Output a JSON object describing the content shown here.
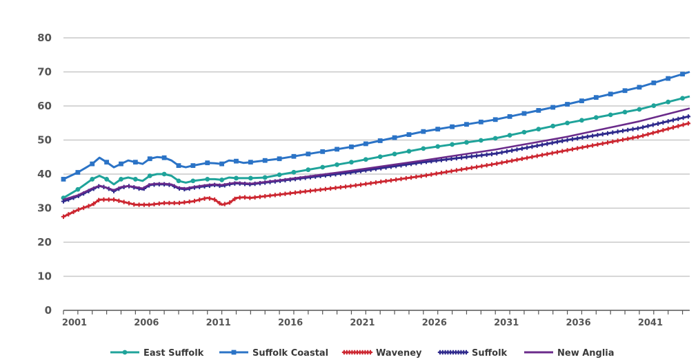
{
  "chart_data": {
    "type": "line",
    "title": "",
    "xlabel": "",
    "ylabel": "",
    "ylim": [
      0,
      80
    ],
    "yticks": [
      0,
      10,
      20,
      30,
      40,
      50,
      60,
      70,
      80
    ],
    "xlim": [
      2001,
      2044.5
    ],
    "xticks": [
      2001,
      2006,
      2011,
      2016,
      2021,
      2026,
      2031,
      2036,
      2041
    ],
    "grid": "horizontal",
    "legend_position": "bottom",
    "series": [
      {
        "name": "East Suffolk",
        "color": "#1fa39a",
        "marker": "circle",
        "points": [
          [
            2001,
            33.0
          ],
          [
            2002,
            35.5
          ],
          [
            2003,
            38.5
          ],
          [
            2003.5,
            39.5
          ],
          [
            2004,
            38.5
          ],
          [
            2004.5,
            37.0
          ],
          [
            2005,
            38.5
          ],
          [
            2005.5,
            39.0
          ],
          [
            2006,
            38.5
          ],
          [
            2006.5,
            38.0
          ],
          [
            2007,
            39.5
          ],
          [
            2007.5,
            40.0
          ],
          [
            2008,
            40.0
          ],
          [
            2008.5,
            39.5
          ],
          [
            2009,
            38.0
          ],
          [
            2009.5,
            37.5
          ],
          [
            2010,
            38.0
          ],
          [
            2011,
            38.5
          ],
          [
            2011.5,
            38.5
          ],
          [
            2012,
            38.3
          ],
          [
            2012.5,
            39.0
          ],
          [
            2013,
            38.8
          ],
          [
            2014,
            38.8
          ],
          [
            2015,
            39.0
          ],
          [
            2016,
            39.8
          ],
          [
            2021,
            43.5
          ],
          [
            2026,
            47.5
          ],
          [
            2031,
            50.5
          ],
          [
            2036,
            55.0
          ],
          [
            2041,
            59.0
          ],
          [
            2044.5,
            62.8
          ]
        ]
      },
      {
        "name": "Suffolk Coastal",
        "color": "#2b73c6",
        "marker": "square",
        "points": [
          [
            2001,
            38.5
          ],
          [
            2002,
            40.5
          ],
          [
            2003,
            43.0
          ],
          [
            2003.5,
            44.8
          ],
          [
            2004,
            43.5
          ],
          [
            2004.5,
            42.0
          ],
          [
            2005,
            43.0
          ],
          [
            2005.5,
            44.0
          ],
          [
            2006,
            43.5
          ],
          [
            2006.5,
            43.0
          ],
          [
            2007,
            44.5
          ],
          [
            2007.5,
            45.0
          ],
          [
            2008,
            44.8
          ],
          [
            2008.5,
            44.0
          ],
          [
            2009,
            42.5
          ],
          [
            2009.5,
            42.0
          ],
          [
            2010,
            42.5
          ],
          [
            2011,
            43.3
          ],
          [
            2011.5,
            43.2
          ],
          [
            2012,
            43.0
          ],
          [
            2012.5,
            44.0
          ],
          [
            2013,
            43.8
          ],
          [
            2013.5,
            43.3
          ],
          [
            2014,
            43.5
          ],
          [
            2016,
            44.5
          ],
          [
            2021,
            48.0
          ],
          [
            2026,
            52.5
          ],
          [
            2031,
            56.0
          ],
          [
            2036,
            60.5
          ],
          [
            2041,
            65.5
          ],
          [
            2044.5,
            70.0
          ]
        ]
      },
      {
        "name": "Waveney",
        "color": "#cc2630",
        "marker": "plus",
        "points": [
          [
            2001,
            27.5
          ],
          [
            2002,
            29.5
          ],
          [
            2003,
            31.0
          ],
          [
            2003.5,
            32.5
          ],
          [
            2004,
            32.5
          ],
          [
            2004.5,
            32.5
          ],
          [
            2005,
            32.0
          ],
          [
            2005.5,
            31.5
          ],
          [
            2006,
            31.0
          ],
          [
            2007,
            31.0
          ],
          [
            2008,
            31.5
          ],
          [
            2009,
            31.5
          ],
          [
            2010,
            32.0
          ],
          [
            2010.5,
            32.5
          ],
          [
            2011,
            33.0
          ],
          [
            2011.5,
            32.5
          ],
          [
            2012,
            31.0
          ],
          [
            2012.5,
            31.5
          ],
          [
            2013,
            33.0
          ],
          [
            2013.5,
            33.2
          ],
          [
            2014,
            33.0
          ],
          [
            2016,
            34.0
          ],
          [
            2021,
            36.5
          ],
          [
            2026,
            39.5
          ],
          [
            2031,
            43.0
          ],
          [
            2036,
            47.0
          ],
          [
            2041,
            51.0
          ],
          [
            2044.5,
            55.0
          ]
        ]
      },
      {
        "name": "Suffolk",
        "color": "#2f2a8c",
        "marker": "plus",
        "points": [
          [
            2001,
            32.0
          ],
          [
            2002,
            33.5
          ],
          [
            2003,
            35.5
          ],
          [
            2003.5,
            36.5
          ],
          [
            2004,
            36.0
          ],
          [
            2004.5,
            35.0
          ],
          [
            2005,
            36.0
          ],
          [
            2005.5,
            36.5
          ],
          [
            2006,
            36.0
          ],
          [
            2006.5,
            35.5
          ],
          [
            2007,
            36.8
          ],
          [
            2007.5,
            37.0
          ],
          [
            2008,
            37.0
          ],
          [
            2008.5,
            36.8
          ],
          [
            2009,
            35.8
          ],
          [
            2009.5,
            35.5
          ],
          [
            2010,
            36.0
          ],
          [
            2011,
            36.5
          ],
          [
            2011.5,
            36.8
          ],
          [
            2012,
            36.5
          ],
          [
            2012.5,
            37.0
          ],
          [
            2013,
            37.3
          ],
          [
            2014,
            37.0
          ],
          [
            2016,
            38.0
          ],
          [
            2021,
            40.5
          ],
          [
            2026,
            43.5
          ],
          [
            2031,
            46.0
          ],
          [
            2036,
            50.0
          ],
          [
            2041,
            53.5
          ],
          [
            2044.5,
            57.0
          ]
        ]
      },
      {
        "name": "New Anglia",
        "color": "#6a2a8a",
        "marker": "none",
        "points": [
          [
            2001,
            32.5
          ],
          [
            2002,
            33.8
          ],
          [
            2003,
            35.8
          ],
          [
            2003.5,
            36.6
          ],
          [
            2004,
            36.0
          ],
          [
            2004.5,
            35.3
          ],
          [
            2005,
            36.2
          ],
          [
            2005.5,
            36.5
          ],
          [
            2006,
            36.2
          ],
          [
            2006.5,
            35.8
          ],
          [
            2007,
            37.0
          ],
          [
            2007.5,
            37.2
          ],
          [
            2008,
            37.2
          ],
          [
            2008.5,
            37.0
          ],
          [
            2009,
            36.0
          ],
          [
            2009.5,
            35.8
          ],
          [
            2010,
            36.2
          ],
          [
            2011,
            36.8
          ],
          [
            2011.5,
            37.0
          ],
          [
            2012,
            36.8
          ],
          [
            2012.5,
            37.2
          ],
          [
            2013,
            37.5
          ],
          [
            2014,
            37.2
          ],
          [
            2016,
            38.2
          ],
          [
            2021,
            41.0
          ],
          [
            2026,
            44.0
          ],
          [
            2031,
            47.2
          ],
          [
            2036,
            51.0
          ],
          [
            2041,
            55.5
          ],
          [
            2044.5,
            59.3
          ]
        ]
      }
    ]
  }
}
